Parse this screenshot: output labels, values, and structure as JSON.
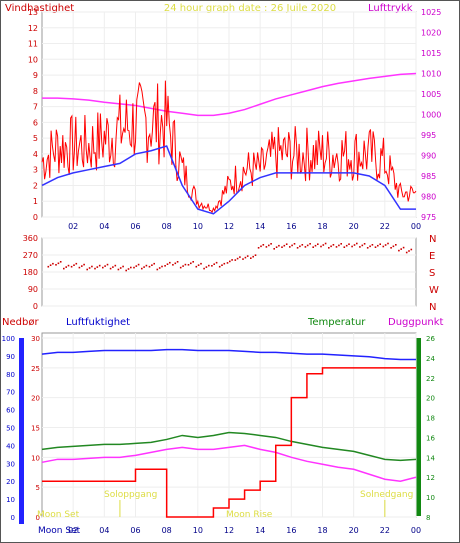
{
  "header": {
    "left_label": "Vindhastighet",
    "title": "24 hour graph date : 26 Juile 2020",
    "right_label": "Lufttrykk"
  },
  "wind_panel": {
    "left_ticks": [
      "0",
      "1",
      "2",
      "3",
      "4",
      "5",
      "6",
      "7",
      "8",
      "9",
      "10",
      "11",
      "12",
      "13"
    ],
    "right_ticks": [
      "975",
      "980",
      "985",
      "990",
      "995",
      "1000",
      "1005",
      "1010",
      "1015",
      "1020",
      "1025"
    ]
  },
  "dir_panel": {
    "left_ticks": [
      "0",
      "90",
      "180",
      "270",
      "360"
    ],
    "right_labels": [
      "N",
      "E",
      "S",
      "W",
      "N"
    ]
  },
  "x_ticks": [
    "02",
    "04",
    "06",
    "08",
    "10",
    "12",
    "14",
    "16",
    "18",
    "20",
    "22",
    "00"
  ],
  "lower_header": {
    "rain_label": "Nedbør",
    "humidity_label": "Luftfuktighet",
    "temp_label": "Temperatur",
    "dew_label": "Duggpunkt"
  },
  "lower_panel": {
    "humidity_ticks": [
      "0",
      "10",
      "20",
      "30",
      "40",
      "50",
      "60",
      "70",
      "80",
      "90",
      "100"
    ],
    "rain_ticks": [
      "0",
      "5",
      "10",
      "15",
      "20",
      "25",
      "30"
    ],
    "temp_ticks": [
      "8",
      "10",
      "12",
      "14",
      "16",
      "18",
      "20",
      "22",
      "24",
      "26"
    ],
    "annotations": {
      "moon_set_top": "Moon Set",
      "soloppgang": "Soloppgang",
      "moon_rise": "Moon Rise",
      "solnedgang": "Solnedgang",
      "moon_set_axis": "Moon Set"
    }
  },
  "colors": {
    "wind_gust": "#ff0000",
    "wind_avg": "#3333ff",
    "pressure": "#ff33ff",
    "direction": "#cc0000",
    "rain": "#ff0000",
    "humidity": "#2222ff",
    "temperature": "#228822",
    "dewpoint": "#ff33ff",
    "moon_sun": "#dddd44"
  },
  "chart_data": [
    {
      "type": "line",
      "ylabel": "Vindhastighet",
      "y2label": "Lufttrykk",
      "ylim": [
        0,
        13
      ],
      "y2lim": [
        975,
        1025
      ],
      "x": [
        0,
        1,
        2,
        3,
        4,
        5,
        6,
        7,
        8,
        9,
        10,
        11,
        12,
        13,
        14,
        15,
        16,
        17,
        18,
        19,
        20,
        21,
        22,
        23,
        24
      ],
      "series": [
        {
          "name": "gust",
          "values": [
            3.5,
            4.5,
            4.5,
            4.5,
            5,
            5.5,
            6,
            6,
            6,
            3,
            1,
            0.5,
            2,
            3,
            3,
            4,
            4,
            4,
            4,
            4,
            4,
            4,
            3.5,
            1.5,
            1.5
          ]
        },
        {
          "name": "average",
          "values": [
            2,
            2.5,
            2.8,
            3,
            3.2,
            3.4,
            4,
            4.2,
            4.5,
            2,
            0.5,
            0.2,
            1,
            2,
            2.5,
            2.8,
            2.8,
            2.8,
            2.8,
            2.8,
            2.8,
            2.6,
            2,
            0.5,
            0.5
          ]
        },
        {
          "name": "pressure",
          "values": [
            1004,
            1004,
            1003.8,
            1003.5,
            1003,
            1002.6,
            1002.2,
            1001.5,
            1000.8,
            1000.3,
            999.8,
            999.8,
            1000.3,
            1001.2,
            1002.5,
            1003.8,
            1004.8,
            1005.8,
            1006.8,
            1007.6,
            1008.2,
            1008.8,
            1009.3,
            1009.8,
            1010
          ]
        }
      ]
    },
    {
      "type": "scatter",
      "ylabel": "Vindretning",
      "ylim": [
        0,
        360
      ],
      "series": [
        {
          "name": "direction",
          "x": [
            0.5,
            1,
            1.5,
            2,
            2.5,
            3,
            3.5,
            4,
            4.5,
            5,
            5.5,
            6,
            6.5,
            7,
            7.5,
            8,
            8.5,
            9,
            9.5,
            10,
            10.5,
            11,
            11.5,
            12,
            12.5,
            13,
            13.5,
            14,
            14.5,
            15,
            15.5,
            16,
            16.5,
            17,
            17.5,
            18,
            18.5,
            19,
            19.5,
            20,
            20.5,
            21,
            21.5,
            22,
            22.5,
            23,
            23.5
          ],
          "values": [
            215,
            225,
            205,
            215,
            210,
            200,
            205,
            210,
            205,
            200,
            195,
            210,
            205,
            215,
            200,
            220,
            225,
            210,
            225,
            215,
            205,
            220,
            215,
            235,
            250,
            255,
            260,
            315,
            320,
            310,
            318,
            320,
            315,
            320,
            318,
            322,
            315,
            320,
            318,
            322,
            320,
            315,
            318,
            322,
            315,
            300,
            290
          ]
        }
      ]
    },
    {
      "type": "line",
      "ylabel": "Luftfuktighet",
      "ylim": [
        0,
        100
      ],
      "y2lim": [
        8,
        26
      ],
      "x": [
        0,
        1,
        2,
        3,
        4,
        5,
        6,
        7,
        8,
        9,
        10,
        11,
        12,
        13,
        14,
        15,
        16,
        17,
        18,
        19,
        20,
        21,
        22,
        23,
        24
      ],
      "series": [
        {
          "name": "humidity",
          "values": [
            91,
            92,
            92,
            92.5,
            93,
            93,
            93,
            93,
            93.5,
            93.5,
            93,
            93,
            93,
            92.5,
            92,
            92,
            91.5,
            91,
            91,
            90.5,
            90,
            89.5,
            88.5,
            88,
            88
          ]
        },
        {
          "name": "temperature",
          "values": [
            14.8,
            15,
            15.1,
            15.2,
            15.3,
            15.3,
            15.4,
            15.5,
            15.8,
            16.2,
            16,
            16.2,
            16.5,
            16.4,
            16.2,
            16,
            15.6,
            15.3,
            15,
            14.8,
            14.6,
            14.2,
            13.8,
            13.7,
            13.8
          ]
        },
        {
          "name": "dewpoint",
          "values": [
            13.5,
            13.8,
            13.8,
            13.9,
            14,
            14,
            14.2,
            14.5,
            14.8,
            15,
            14.8,
            14.8,
            15,
            15.2,
            14.8,
            14.5,
            14,
            13.6,
            13.3,
            13,
            12.8,
            12.3,
            11.8,
            11.6,
            12
          ]
        },
        {
          "name": "rain",
          "values": [
            6,
            6,
            6,
            6,
            6,
            6,
            8,
            8,
            0,
            0,
            0,
            1.5,
            3,
            4.5,
            6,
            12,
            20,
            24,
            25,
            25,
            25,
            25,
            25,
            25,
            25
          ]
        }
      ]
    }
  ]
}
